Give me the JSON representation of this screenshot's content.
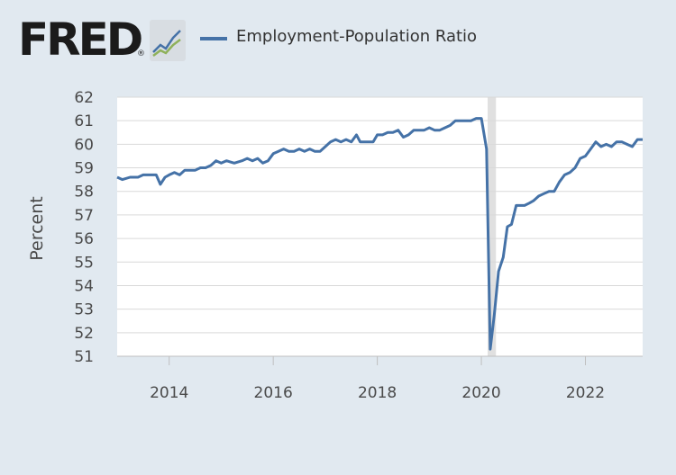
{
  "header": {
    "logo_text": "FRED",
    "logo_mark": "®",
    "badge_icon": "line-graph-icon",
    "legend_label": "Employment-Population Ratio"
  },
  "colors": {
    "series": "#4572a7",
    "plot_bg": "#ffffff",
    "page_bg": "#e1e9f0",
    "recession": "#e0e0e0",
    "grid": "#d9d9d9"
  },
  "chart_data": {
    "type": "line",
    "title": "",
    "xlabel": "",
    "ylabel": "Percent",
    "ylim": [
      51,
      62
    ],
    "xlim": [
      2013.0,
      2023.1
    ],
    "grid": "horizontal",
    "y_ticks": [
      51,
      52,
      53,
      54,
      55,
      56,
      57,
      58,
      59,
      60,
      61,
      62
    ],
    "x_ticks": [
      2014,
      2016,
      2018,
      2020,
      2022
    ],
    "recession": [
      2020.12,
      2020.28
    ],
    "series": [
      {
        "name": "Employment-Population Ratio",
        "x": [
          2013.0,
          2013.1,
          2013.25,
          2013.4,
          2013.5,
          2013.6,
          2013.75,
          2013.83,
          2013.92,
          2014.0,
          2014.1,
          2014.2,
          2014.3,
          2014.4,
          2014.5,
          2014.6,
          2014.7,
          2014.8,
          2014.9,
          2015.0,
          2015.1,
          2015.25,
          2015.4,
          2015.5,
          2015.6,
          2015.7,
          2015.8,
          2015.9,
          2016.0,
          2016.1,
          2016.2,
          2016.3,
          2016.4,
          2016.5,
          2016.6,
          2016.7,
          2016.8,
          2016.9,
          2017.0,
          2017.1,
          2017.2,
          2017.3,
          2017.4,
          2017.5,
          2017.6,
          2017.67,
          2017.75,
          2017.83,
          2017.92,
          2018.0,
          2018.1,
          2018.2,
          2018.3,
          2018.4,
          2018.5,
          2018.6,
          2018.7,
          2018.8,
          2018.9,
          2019.0,
          2019.1,
          2019.2,
          2019.3,
          2019.4,
          2019.5,
          2019.6,
          2019.7,
          2019.8,
          2019.9,
          2020.0,
          2020.1,
          2020.17,
          2020.25,
          2020.33,
          2020.42,
          2020.5,
          2020.58,
          2020.67,
          2020.75,
          2020.83,
          2020.92,
          2021.0,
          2021.1,
          2021.2,
          2021.3,
          2021.4,
          2021.5,
          2021.6,
          2021.7,
          2021.8,
          2021.9,
          2022.0,
          2022.1,
          2022.2,
          2022.3,
          2022.4,
          2022.5,
          2022.6,
          2022.7,
          2022.8,
          2022.9,
          2023.0,
          2023.1
        ],
        "values": [
          58.6,
          58.5,
          58.6,
          58.6,
          58.7,
          58.7,
          58.7,
          58.3,
          58.6,
          58.7,
          58.8,
          58.7,
          58.9,
          58.9,
          58.9,
          59.0,
          59.0,
          59.1,
          59.3,
          59.2,
          59.3,
          59.2,
          59.3,
          59.4,
          59.3,
          59.4,
          59.2,
          59.3,
          59.6,
          59.7,
          59.8,
          59.7,
          59.7,
          59.8,
          59.7,
          59.8,
          59.7,
          59.7,
          59.9,
          60.1,
          60.2,
          60.1,
          60.2,
          60.1,
          60.4,
          60.1,
          60.1,
          60.1,
          60.1,
          60.4,
          60.4,
          60.5,
          60.5,
          60.6,
          60.3,
          60.4,
          60.6,
          60.6,
          60.6,
          60.7,
          60.6,
          60.6,
          60.7,
          60.8,
          61.0,
          61.0,
          61.0,
          61.0,
          61.1,
          61.1,
          59.8,
          51.3,
          52.8,
          54.6,
          55.2,
          56.5,
          56.6,
          57.4,
          57.4,
          57.4,
          57.5,
          57.6,
          57.8,
          57.9,
          58.0,
          58.0,
          58.4,
          58.7,
          58.8,
          59.0,
          59.4,
          59.5,
          59.8,
          60.1,
          59.9,
          60.0,
          59.9,
          60.1,
          60.1,
          60.0,
          59.9,
          60.2,
          60.2
        ]
      }
    ]
  }
}
